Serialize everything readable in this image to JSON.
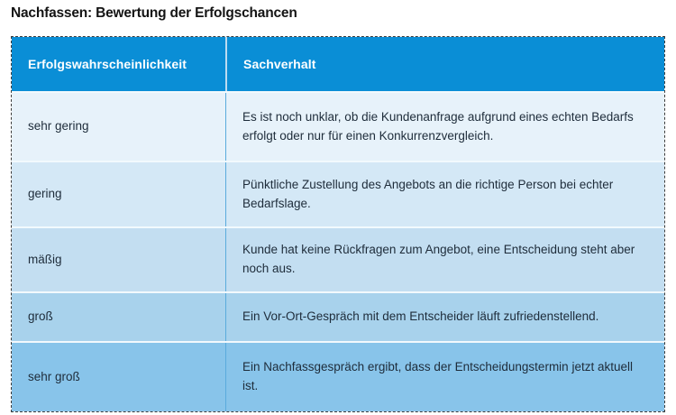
{
  "page_title": "Nachfassen: Bewertung der Erfolgschancen",
  "table": {
    "columns": [
      "Erfolgswahrscheinlichkeit",
      "Sachverhalt"
    ],
    "rows": [
      {
        "probability": "sehr gering",
        "fact": "Es ist noch unklar, ob die Kundenanfrage aufgrund eines echten Bedarfs erfolgt oder nur für einen Konkurrenzvergleich."
      },
      {
        "probability": "gering",
        "fact": "Pünktliche Zustellung des Angebots an die richtige Person bei echter Bedarfslage."
      },
      {
        "probability": "mäßig",
        "fact": "Kunde hat keine Rückfragen zum Angebot, eine Entscheidung steht aber noch aus."
      },
      {
        "probability": "groß",
        "fact": "Ein Vor-Ort-Gespräch mit dem Entscheider läuft zufriedenstellend."
      },
      {
        "probability": "sehr groß",
        "fact": "Ein Nachfassgespräch ergibt, dass der Entscheidungstermin jetzt aktuell ist."
      }
    ],
    "colors": {
      "header_bg": "#0a8ed6",
      "header_text": "#ffffff",
      "body_text": "#1e2c3a",
      "row_backgrounds": [
        "#e7f2fa",
        "#d4e8f6",
        "#c3def1",
        "#a8d2ec",
        "#88c4ea"
      ]
    }
  }
}
